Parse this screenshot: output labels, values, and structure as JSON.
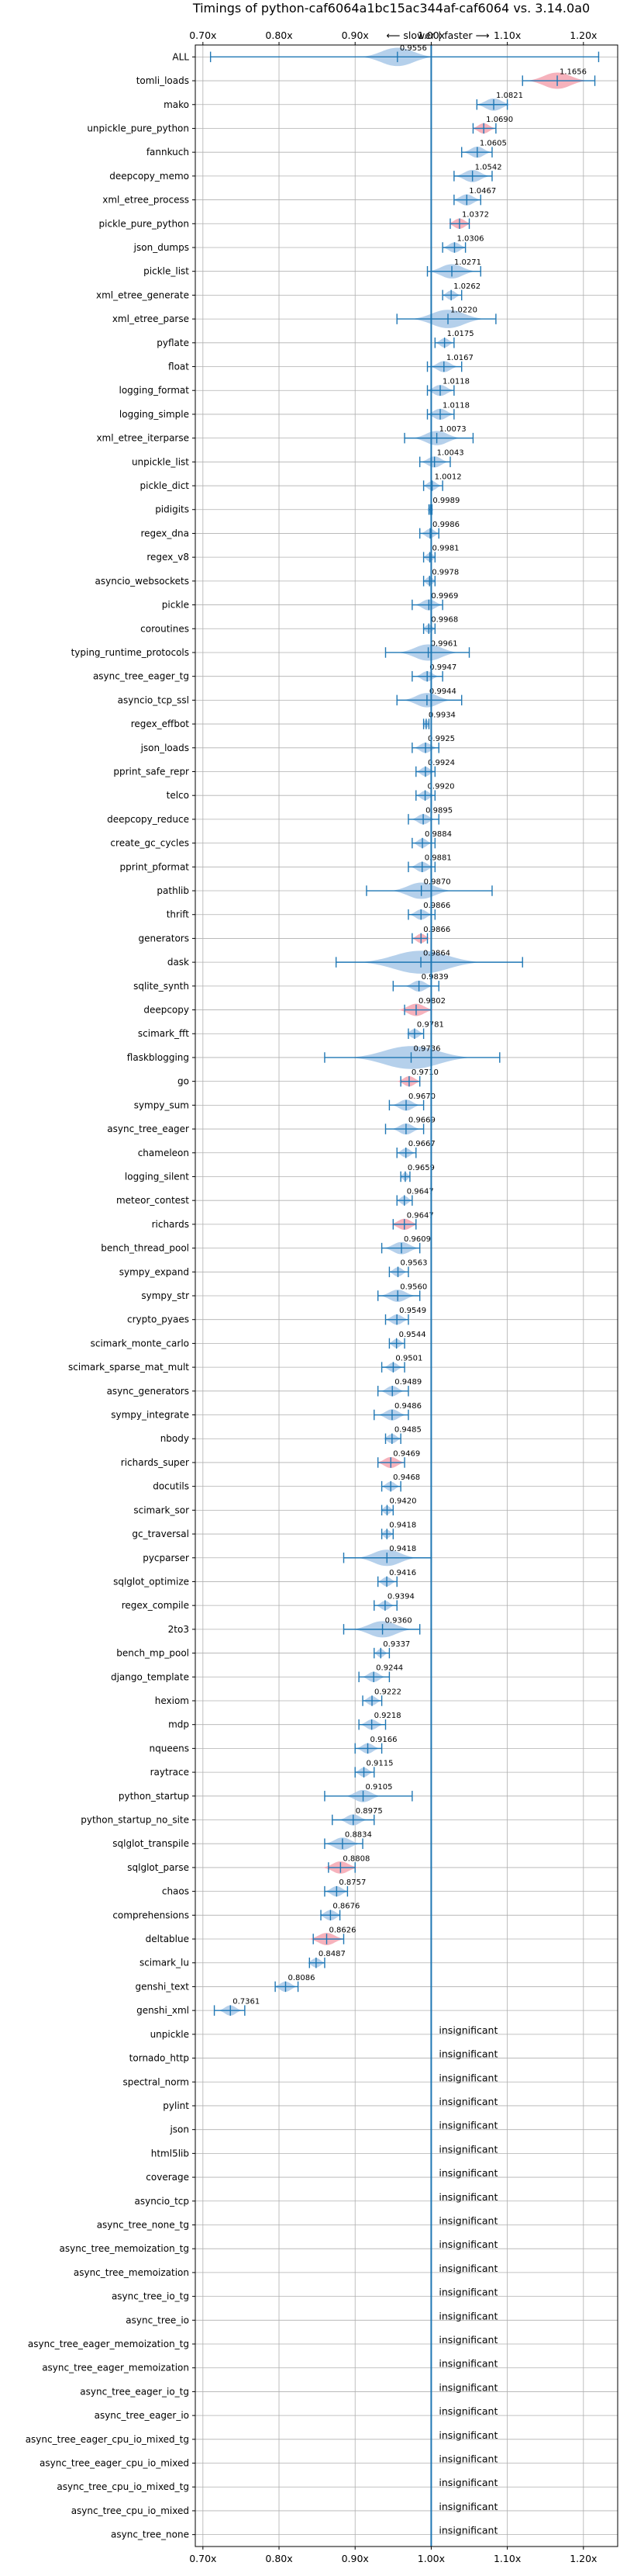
{
  "chart_data": {
    "type": "violin",
    "title": "Timings of python-caf6064a1bc15ac344af-caf6064 vs. 3.14.0a0",
    "subtitle": "⟵ slower | faster ⟶",
    "xlim": [
      0.69,
      1.245
    ],
    "x_ticks": [
      0.7,
      0.8,
      0.9,
      1.0,
      1.1,
      1.2
    ],
    "x_tick_labels": [
      "0.70x",
      "0.80x",
      "0.90x",
      "1.00x",
      "1.10x",
      "1.20x"
    ],
    "grid": true,
    "colors": {
      "faster": "#a8c8e8",
      "slower": "#f4a4b0",
      "line": "#1f77b4",
      "grid": "#b0b0b0"
    },
    "significant": [
      {
        "name": "ALL",
        "value": 0.9556,
        "min": 0.71,
        "max": 1.22,
        "spread": 0.03,
        "color": "blue"
      },
      {
        "name": "tomli_loads",
        "value": 1.1656,
        "min": 1.12,
        "max": 1.215,
        "spread": 0.025,
        "color": "red"
      },
      {
        "name": "mako",
        "value": 1.0821,
        "min": 1.06,
        "max": 1.1,
        "spread": 0.015,
        "color": "blue"
      },
      {
        "name": "unpickle_pure_python",
        "value": 1.069,
        "min": 1.055,
        "max": 1.085,
        "spread": 0.01,
        "color": "red"
      },
      {
        "name": "fannkuch",
        "value": 1.0605,
        "min": 1.04,
        "max": 1.08,
        "spread": 0.012,
        "color": "blue"
      },
      {
        "name": "deepcopy_memo",
        "value": 1.0542,
        "min": 1.03,
        "max": 1.08,
        "spread": 0.015,
        "color": "blue"
      },
      {
        "name": "xml_etree_process",
        "value": 1.0467,
        "min": 1.03,
        "max": 1.065,
        "spread": 0.012,
        "color": "blue"
      },
      {
        "name": "pickle_pure_python",
        "value": 1.0372,
        "min": 1.025,
        "max": 1.05,
        "spread": 0.01,
        "color": "red"
      },
      {
        "name": "json_dumps",
        "value": 1.0306,
        "min": 1.015,
        "max": 1.045,
        "spread": 0.01,
        "color": "blue"
      },
      {
        "name": "pickle_list",
        "value": 1.0271,
        "min": 0.995,
        "max": 1.065,
        "spread": 0.02,
        "color": "blue"
      },
      {
        "name": "xml_etree_generate",
        "value": 1.0262,
        "min": 1.015,
        "max": 1.04,
        "spread": 0.008,
        "color": "blue"
      },
      {
        "name": "xml_etree_parse",
        "value": 1.022,
        "min": 0.955,
        "max": 1.085,
        "spread": 0.03,
        "color": "blue"
      },
      {
        "name": "pyflate",
        "value": 1.0175,
        "min": 1.005,
        "max": 1.03,
        "spread": 0.008,
        "color": "blue"
      },
      {
        "name": "float",
        "value": 1.0167,
        "min": 0.995,
        "max": 1.04,
        "spread": 0.012,
        "color": "blue"
      },
      {
        "name": "logging_format",
        "value": 1.0118,
        "min": 0.995,
        "max": 1.03,
        "spread": 0.012,
        "color": "blue"
      },
      {
        "name": "logging_simple",
        "value": 1.0118,
        "min": 0.995,
        "max": 1.03,
        "spread": 0.012,
        "color": "blue"
      },
      {
        "name": "xml_etree_iterparse",
        "value": 1.0073,
        "min": 0.965,
        "max": 1.055,
        "spread": 0.02,
        "color": "blue"
      },
      {
        "name": "unpickle_list",
        "value": 1.0043,
        "min": 0.985,
        "max": 1.025,
        "spread": 0.012,
        "color": "blue"
      },
      {
        "name": "pickle_dict",
        "value": 1.0012,
        "min": 0.99,
        "max": 1.015,
        "spread": 0.008,
        "color": "blue"
      },
      {
        "name": "pidigits",
        "value": 0.9989,
        "min": 0.997,
        "max": 1.001,
        "spread": 0.003,
        "color": "blue"
      },
      {
        "name": "regex_dna",
        "value": 0.9986,
        "min": 0.985,
        "max": 1.01,
        "spread": 0.008,
        "color": "blue"
      },
      {
        "name": "regex_v8",
        "value": 0.9981,
        "min": 0.99,
        "max": 1.005,
        "spread": 0.006,
        "color": "blue"
      },
      {
        "name": "asyncio_websockets",
        "value": 0.9978,
        "min": 0.99,
        "max": 1.005,
        "spread": 0.006,
        "color": "blue"
      },
      {
        "name": "pickle",
        "value": 0.9969,
        "min": 0.975,
        "max": 1.015,
        "spread": 0.012,
        "color": "blue"
      },
      {
        "name": "coroutines",
        "value": 0.9968,
        "min": 0.99,
        "max": 1.005,
        "spread": 0.006,
        "color": "blue"
      },
      {
        "name": "typing_runtime_protocols",
        "value": 0.9961,
        "min": 0.94,
        "max": 1.05,
        "spread": 0.025,
        "color": "blue"
      },
      {
        "name": "async_tree_eager_tg",
        "value": 0.9947,
        "min": 0.975,
        "max": 1.015,
        "spread": 0.01,
        "color": "blue"
      },
      {
        "name": "asyncio_tcp_ssl",
        "value": 0.9944,
        "min": 0.955,
        "max": 1.04,
        "spread": 0.02,
        "color": "blue"
      },
      {
        "name": "regex_effbot",
        "value": 0.9934,
        "min": 0.99,
        "max": 0.997,
        "spread": 0.004,
        "color": "blue"
      },
      {
        "name": "json_loads",
        "value": 0.9925,
        "min": 0.975,
        "max": 1.01,
        "spread": 0.01,
        "color": "blue"
      },
      {
        "name": "pprint_safe_repr",
        "value": 0.9924,
        "min": 0.98,
        "max": 1.005,
        "spread": 0.008,
        "color": "blue"
      },
      {
        "name": "telco",
        "value": 0.992,
        "min": 0.98,
        "max": 1.005,
        "spread": 0.008,
        "color": "blue"
      },
      {
        "name": "deepcopy_reduce",
        "value": 0.9895,
        "min": 0.97,
        "max": 1.01,
        "spread": 0.01,
        "color": "blue"
      },
      {
        "name": "create_gc_cycles",
        "value": 0.9884,
        "min": 0.975,
        "max": 1.005,
        "spread": 0.008,
        "color": "blue"
      },
      {
        "name": "pprint_pformat",
        "value": 0.9881,
        "min": 0.97,
        "max": 1.005,
        "spread": 0.01,
        "color": "blue"
      },
      {
        "name": "pathlib",
        "value": 0.987,
        "min": 0.915,
        "max": 1.08,
        "spread": 0.025,
        "color": "blue"
      },
      {
        "name": "thrift",
        "value": 0.9866,
        "min": 0.97,
        "max": 1.005,
        "spread": 0.01,
        "color": "blue"
      },
      {
        "name": "generators",
        "value": 0.9866,
        "min": 0.975,
        "max": 0.995,
        "spread": 0.008,
        "color": "red"
      },
      {
        "name": "dask",
        "value": 0.9864,
        "min": 0.875,
        "max": 1.12,
        "spread": 0.05,
        "color": "blue"
      },
      {
        "name": "sqlite_synth",
        "value": 0.9839,
        "min": 0.95,
        "max": 1.01,
        "spread": 0.012,
        "color": "blue"
      },
      {
        "name": "deepcopy",
        "value": 0.9802,
        "min": 0.965,
        "max": 1.0,
        "spread": 0.015,
        "color": "red"
      },
      {
        "name": "scimark_fft",
        "value": 0.9781,
        "min": 0.97,
        "max": 0.99,
        "spread": 0.008,
        "color": "blue"
      },
      {
        "name": "flaskblogging",
        "value": 0.9736,
        "min": 0.86,
        "max": 1.09,
        "spread": 0.05,
        "color": "blue"
      },
      {
        "name": "go",
        "value": 0.971,
        "min": 0.96,
        "max": 0.985,
        "spread": 0.01,
        "color": "red"
      },
      {
        "name": "sympy_sum",
        "value": 0.967,
        "min": 0.945,
        "max": 0.99,
        "spread": 0.012,
        "color": "blue"
      },
      {
        "name": "async_tree_eager",
        "value": 0.9669,
        "min": 0.94,
        "max": 0.99,
        "spread": 0.012,
        "color": "blue"
      },
      {
        "name": "chameleon",
        "value": 0.9667,
        "min": 0.955,
        "max": 0.98,
        "spread": 0.008,
        "color": "blue"
      },
      {
        "name": "logging_silent",
        "value": 0.9659,
        "min": 0.96,
        "max": 0.972,
        "spread": 0.005,
        "color": "blue"
      },
      {
        "name": "meteor_contest",
        "value": 0.9647,
        "min": 0.955,
        "max": 0.975,
        "spread": 0.007,
        "color": "blue"
      },
      {
        "name": "richards",
        "value": 0.9647,
        "min": 0.95,
        "max": 0.98,
        "spread": 0.012,
        "color": "red"
      },
      {
        "name": "bench_thread_pool",
        "value": 0.9609,
        "min": 0.935,
        "max": 0.985,
        "spread": 0.015,
        "color": "blue"
      },
      {
        "name": "sympy_expand",
        "value": 0.9563,
        "min": 0.945,
        "max": 0.97,
        "spread": 0.008,
        "color": "blue"
      },
      {
        "name": "sympy_str",
        "value": 0.956,
        "min": 0.93,
        "max": 0.985,
        "spread": 0.015,
        "color": "blue"
      },
      {
        "name": "crypto_pyaes",
        "value": 0.9549,
        "min": 0.94,
        "max": 0.97,
        "spread": 0.01,
        "color": "blue"
      },
      {
        "name": "scimark_monte_carlo",
        "value": 0.9544,
        "min": 0.945,
        "max": 0.965,
        "spread": 0.007,
        "color": "blue"
      },
      {
        "name": "scimark_sparse_mat_mult",
        "value": 0.9501,
        "min": 0.935,
        "max": 0.965,
        "spread": 0.008,
        "color": "blue"
      },
      {
        "name": "async_generators",
        "value": 0.9489,
        "min": 0.93,
        "max": 0.97,
        "spread": 0.01,
        "color": "blue"
      },
      {
        "name": "sympy_integrate",
        "value": 0.9486,
        "min": 0.925,
        "max": 0.97,
        "spread": 0.012,
        "color": "blue"
      },
      {
        "name": "nbody",
        "value": 0.9485,
        "min": 0.94,
        "max": 0.96,
        "spread": 0.008,
        "color": "blue"
      },
      {
        "name": "richards_super",
        "value": 0.9469,
        "min": 0.93,
        "max": 0.965,
        "spread": 0.012,
        "color": "red"
      },
      {
        "name": "docutils",
        "value": 0.9468,
        "min": 0.935,
        "max": 0.96,
        "spread": 0.008,
        "color": "blue"
      },
      {
        "name": "scimark_sor",
        "value": 0.942,
        "min": 0.935,
        "max": 0.95,
        "spread": 0.006,
        "color": "blue"
      },
      {
        "name": "gc_traversal",
        "value": 0.9418,
        "min": 0.935,
        "max": 0.95,
        "spread": 0.006,
        "color": "blue"
      },
      {
        "name": "pycparser",
        "value": 0.9418,
        "min": 0.885,
        "max": 1.0,
        "spread": 0.025,
        "color": "blue"
      },
      {
        "name": "sqlglot_optimize",
        "value": 0.9416,
        "min": 0.93,
        "max": 0.955,
        "spread": 0.008,
        "color": "blue"
      },
      {
        "name": "regex_compile",
        "value": 0.9394,
        "min": 0.925,
        "max": 0.955,
        "spread": 0.008,
        "color": "blue"
      },
      {
        "name": "2to3",
        "value": 0.936,
        "min": 0.885,
        "max": 0.985,
        "spread": 0.025,
        "color": "blue"
      },
      {
        "name": "bench_mp_pool",
        "value": 0.9337,
        "min": 0.925,
        "max": 0.945,
        "spread": 0.006,
        "color": "blue"
      },
      {
        "name": "django_template",
        "value": 0.9244,
        "min": 0.905,
        "max": 0.945,
        "spread": 0.01,
        "color": "blue"
      },
      {
        "name": "hexiom",
        "value": 0.9222,
        "min": 0.91,
        "max": 0.935,
        "spread": 0.008,
        "color": "blue"
      },
      {
        "name": "mdp",
        "value": 0.9218,
        "min": 0.905,
        "max": 0.94,
        "spread": 0.01,
        "color": "blue"
      },
      {
        "name": "nqueens",
        "value": 0.9166,
        "min": 0.9,
        "max": 0.935,
        "spread": 0.01,
        "color": "blue"
      },
      {
        "name": "raytrace",
        "value": 0.9115,
        "min": 0.9,
        "max": 0.925,
        "spread": 0.008,
        "color": "blue"
      },
      {
        "name": "python_startup",
        "value": 0.9105,
        "min": 0.86,
        "max": 0.975,
        "spread": 0.015,
        "color": "blue"
      },
      {
        "name": "python_startup_no_site",
        "value": 0.8975,
        "min": 0.87,
        "max": 0.925,
        "spread": 0.012,
        "color": "blue"
      },
      {
        "name": "sqlglot_transpile",
        "value": 0.8834,
        "min": 0.86,
        "max": 0.91,
        "spread": 0.015,
        "color": "blue"
      },
      {
        "name": "sqlglot_parse",
        "value": 0.8808,
        "min": 0.865,
        "max": 0.9,
        "spread": 0.015,
        "color": "red"
      },
      {
        "name": "chaos",
        "value": 0.8757,
        "min": 0.86,
        "max": 0.89,
        "spread": 0.01,
        "color": "blue"
      },
      {
        "name": "comprehensions",
        "value": 0.8676,
        "min": 0.855,
        "max": 0.88,
        "spread": 0.01,
        "color": "blue"
      },
      {
        "name": "deltablue",
        "value": 0.8626,
        "min": 0.845,
        "max": 0.885,
        "spread": 0.015,
        "color": "red"
      },
      {
        "name": "scimark_lu",
        "value": 0.8487,
        "min": 0.84,
        "max": 0.86,
        "spread": 0.008,
        "color": "blue"
      },
      {
        "name": "genshi_text",
        "value": 0.8086,
        "min": 0.795,
        "max": 0.825,
        "spread": 0.01,
        "color": "blue"
      },
      {
        "name": "genshi_xml",
        "value": 0.7361,
        "min": 0.715,
        "max": 0.755,
        "spread": 0.01,
        "color": "blue"
      }
    ],
    "insignificant": [
      "unpickle",
      "tornado_http",
      "spectral_norm",
      "pylint",
      "json",
      "html5lib",
      "coverage",
      "asyncio_tcp",
      "async_tree_none_tg",
      "async_tree_memoization_tg",
      "async_tree_memoization",
      "async_tree_io_tg",
      "async_tree_io",
      "async_tree_eager_memoization_tg",
      "async_tree_eager_memoization",
      "async_tree_eager_io_tg",
      "async_tree_eager_io",
      "async_tree_eager_cpu_io_mixed_tg",
      "async_tree_eager_cpu_io_mixed",
      "async_tree_cpu_io_mixed_tg",
      "async_tree_cpu_io_mixed",
      "async_tree_none"
    ],
    "insignificant_label": "insignificant"
  }
}
